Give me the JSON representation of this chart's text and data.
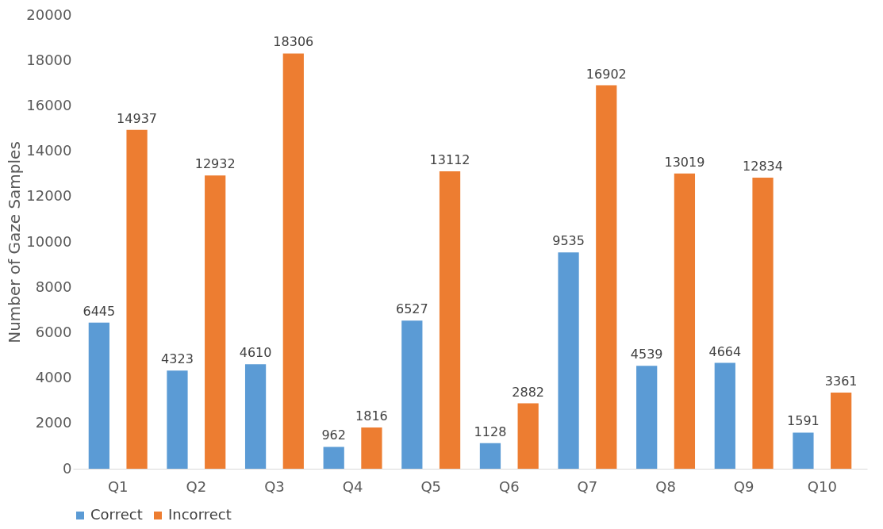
{
  "chart_data": {
    "type": "bar",
    "ylabel": "Number of Gaze Samples",
    "categories": [
      "Q1",
      "Q2",
      "Q3",
      "Q4",
      "Q5",
      "Q6",
      "Q7",
      "Q8",
      "Q9",
      "Q10"
    ],
    "series": [
      {
        "name": "Correct",
        "color": "#5b9bd5",
        "values": [
          6445,
          4323,
          4610,
          962,
          6527,
          1128,
          9535,
          4539,
          4664,
          1591
        ]
      },
      {
        "name": "Incorrect",
        "color": "#ed7d31",
        "values": [
          14937,
          12932,
          18306,
          1816,
          13112,
          2882,
          16902,
          13019,
          12834,
          3361
        ]
      }
    ],
    "ylim": [
      0,
      20000
    ],
    "yticks": [
      0,
      2000,
      4000,
      6000,
      8000,
      10000,
      12000,
      14000,
      16000,
      18000,
      20000
    ],
    "grid": false,
    "legend": "bottom",
    "data_labels": true
  }
}
